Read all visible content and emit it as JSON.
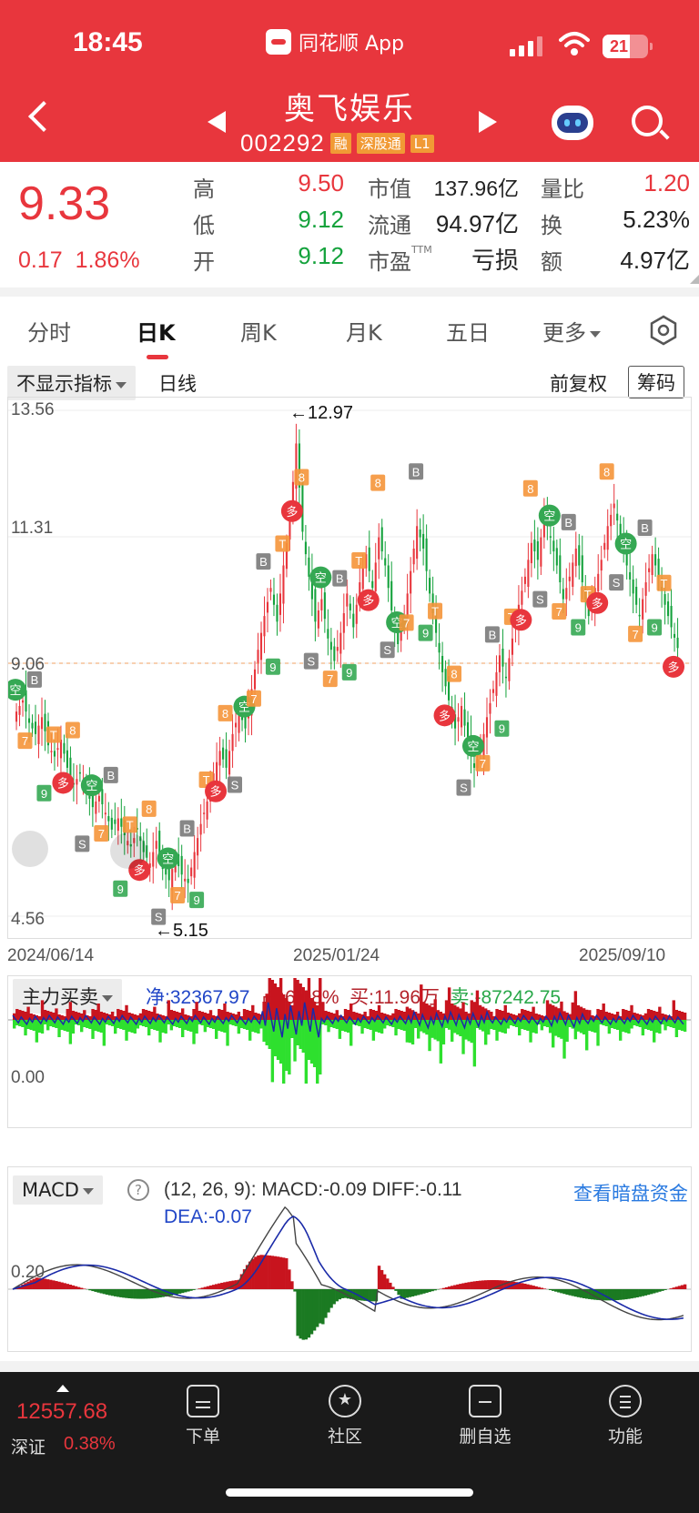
{
  "status_bar": {
    "time": "18:45",
    "app_name": "同花顺 App",
    "battery": "21"
  },
  "header": {
    "name": "奥飞娱乐",
    "code": "002292",
    "tags": [
      "融",
      "深股通",
      "L1"
    ]
  },
  "quote": {
    "price": "9.33",
    "change": "0.17",
    "change_pct": "1.86%",
    "stats": [
      {
        "key": "高",
        "value": "9.50",
        "tone": "up"
      },
      {
        "key": "低",
        "value": "9.12",
        "tone": "dn"
      },
      {
        "key": "开",
        "value": "9.12",
        "tone": "dn"
      },
      {
        "key": "市值",
        "value": "137.96亿",
        "tone": "nt"
      },
      {
        "key": "流通",
        "value": "94.97亿",
        "tone": "nt"
      },
      {
        "key": "市盈",
        "sup": "TTM",
        "value": "亏损",
        "tone": "nt"
      },
      {
        "key": "量比",
        "value": "1.20",
        "tone": "up"
      },
      {
        "key": "换",
        "value": "5.23%",
        "tone": "nt"
      },
      {
        "key": "额",
        "value": "4.97亿",
        "tone": "nt"
      }
    ]
  },
  "tabs": [
    "分时",
    "日K",
    "周K",
    "月K",
    "五日",
    "更多"
  ],
  "active_tab": "日K",
  "toolbar": {
    "indicator": "不显示指标",
    "period": "日线",
    "adjust": "前复权",
    "chips_button": "筹码"
  },
  "chart_data": [
    {
      "type": "candlestick",
      "title": "日线",
      "y_ticks": [
        "13.56",
        "11.31",
        "9.06",
        "4.56"
      ],
      "x_ticks": [
        "2024/06/14",
        "2025/01/24",
        "2025/09/10"
      ],
      "ylim": [
        4.56,
        13.56
      ],
      "reference_price": 9.06,
      "annotations": [
        {
          "text": "←12.97",
          "value": 12.97
        },
        {
          "text": "←5.15",
          "value": 5.15
        }
      ],
      "signal_labels": [
        "空",
        "多",
        "B",
        "S",
        "T",
        "7",
        "8",
        "9"
      ],
      "series": [
        {
          "values": [
            8.2,
            8.4,
            8.0,
            7.8,
            8.1,
            7.6,
            7.4,
            7.7,
            7.2,
            6.9,
            7.1,
            6.8,
            6.5,
            6.7,
            6.4,
            6.1,
            6.3,
            6.0,
            5.8,
            6.1,
            5.7,
            5.5,
            5.9,
            5.4,
            5.2,
            5.6,
            5.3,
            5.15,
            5.7,
            6.2,
            6.6,
            7.1,
            7.5,
            7.2,
            7.8,
            8.2,
            7.9,
            8.6,
            9.3,
            9.9,
            10.4,
            9.8,
            10.8,
            11.6,
            12.97,
            11.4,
            10.6,
            9.8,
            10.2,
            9.5,
            9.1,
            9.6,
            10.3,
            9.7,
            10.5,
            11.0,
            10.4,
            11.3,
            10.8,
            10.0,
            9.4,
            9.9,
            10.7,
            11.5,
            11.1,
            10.3,
            9.6,
            8.9,
            8.4,
            7.9,
            8.3,
            7.6,
            7.2,
            7.5,
            8.1,
            8.6,
            9.2,
            8.8,
            9.5,
            10.1,
            10.6,
            11.2,
            10.9,
            11.7,
            11.3,
            10.8,
            10.2,
            10.6,
            11.1,
            10.5,
            9.9,
            10.4,
            10.9,
            11.5,
            11.9,
            11.3,
            10.8,
            10.3,
            9.9,
            10.5,
            11.0,
            10.6,
            10.1,
            9.7,
            9.33
          ]
        }
      ]
    },
    {
      "type": "bar",
      "title": "主力买卖",
      "legend": {
        "net": "净:32367.97",
        "share": "占:6.08%",
        "buy": "买:11.96万",
        "sell": "卖:-87242.75"
      },
      "y_ticks": [
        "0.00"
      ]
    },
    {
      "type": "macd",
      "title": "MACD",
      "params": "(12, 26, 9):",
      "legend": {
        "macd": "MACD:-0.09",
        "diff": "DIFF:-0.11",
        "dea": "DEA:-0.07"
      },
      "y_ticks": [
        "0.20"
      ],
      "link": "查看暗盘资金"
    }
  ],
  "bottom_bar": {
    "index_value": "12557.68",
    "index_name": "深证",
    "index_pct": "0.38%",
    "nav": [
      "下单",
      "社区",
      "删自选",
      "功能"
    ]
  },
  "colors": {
    "up": "#e8363d",
    "down": "#14a23c",
    "header": "#e8363d",
    "signal_orange": "#f5953a",
    "signal_gray": "#777777"
  }
}
